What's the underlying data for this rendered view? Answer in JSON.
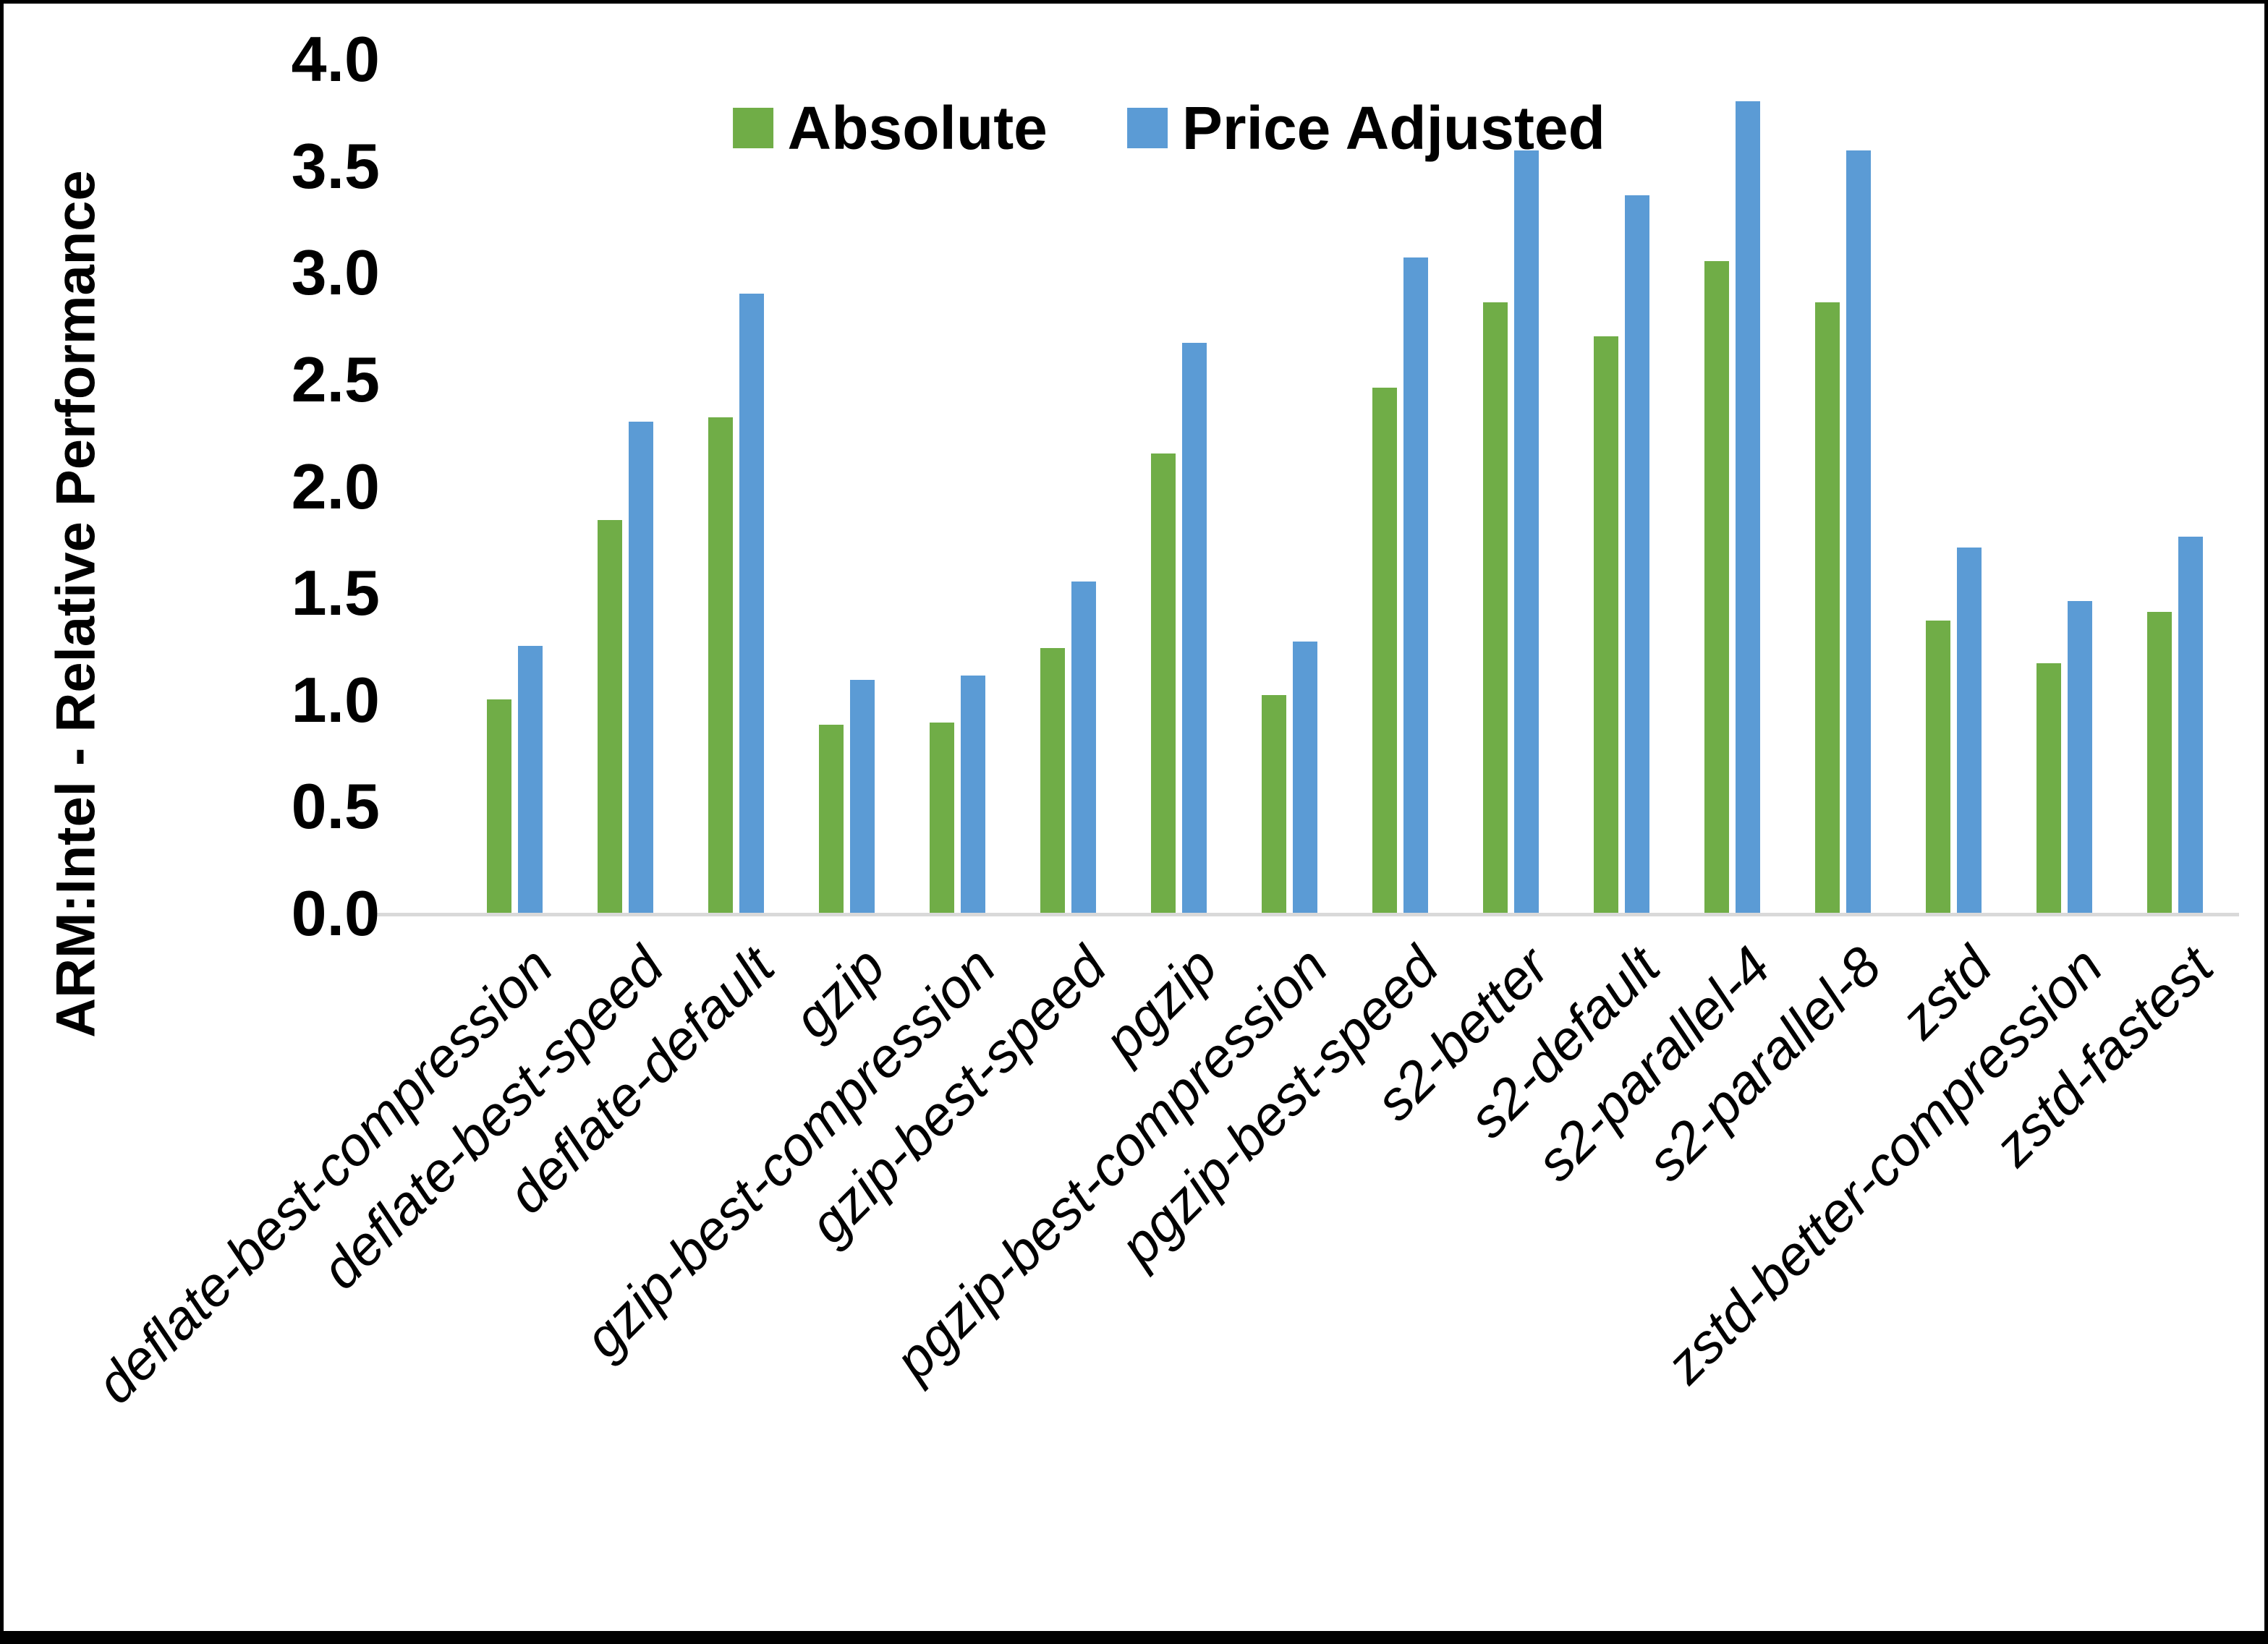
{
  "chart_data": {
    "type": "bar",
    "categories": [
      "deflate-best-compression",
      "deflate-best-speed",
      "deflate-default",
      "gzip",
      "gzip-best-compression",
      "gzip-best-speed",
      "pgzip",
      "pgzip-best-compression",
      "pgzip-best-speed",
      "s2-better",
      "s2-default",
      "s2-parallel-4",
      "s2-parallel-8",
      "zstd",
      "zstd-better-compression",
      "zstd-fastest"
    ],
    "series": [
      {
        "name": "Absolute",
        "color": "#70AD47",
        "values": [
          1.0,
          1.84,
          2.32,
          0.88,
          0.89,
          1.24,
          2.15,
          1.02,
          2.46,
          2.86,
          2.7,
          3.05,
          2.86,
          1.37,
          1.17,
          1.41
        ]
      },
      {
        "name": "Price Adjusted",
        "color": "#5B9BD5",
        "values": [
          1.25,
          2.3,
          2.9,
          1.09,
          1.11,
          1.55,
          2.67,
          1.27,
          3.07,
          3.57,
          3.36,
          3.8,
          3.57,
          1.71,
          1.46,
          1.76
        ]
      }
    ],
    "xlabel": "",
    "ylabel": "ARM:Intel - Relative Performance",
    "ylim": [
      0.0,
      4.0
    ],
    "yticks": [
      0.0,
      0.5,
      1.0,
      1.5,
      2.0,
      2.5,
      3.0,
      3.5,
      4.0
    ],
    "ytick_decimals": 1,
    "grid": "off",
    "legend_position": "top-center",
    "colors": {
      "axis_line": "#D9D9D9",
      "text": "#000000",
      "frame": "#000000"
    }
  }
}
